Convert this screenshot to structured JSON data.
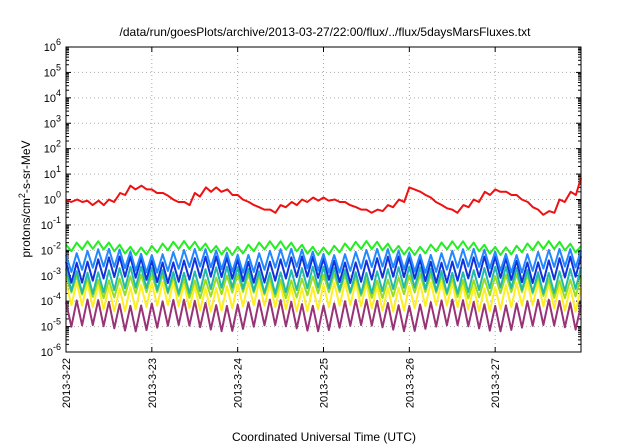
{
  "chart_data": {
    "type": "line",
    "title": "/data/run/goesPlots/archive/2013-03-27/22:00/flux/../flux/5daysMarsFluxes.txt",
    "xlabel": "Coordinated Universal Time (UTC)",
    "ylabel": "protons/cm2-s-sr-MeV",
    "yscale": "log",
    "ylim": [
      1e-06,
      1000000.0
    ],
    "xlim": [
      0,
      6
    ],
    "grid": true,
    "x_ticks": [
      {
        "label": "2013-3-22",
        "pos": 0
      },
      {
        "label": "2013-3-23",
        "pos": 1
      },
      {
        "label": "2013-3-24",
        "pos": 2
      },
      {
        "label": "2013-3-25",
        "pos": 3
      },
      {
        "label": "2013-3-26",
        "pos": 4
      },
      {
        "label": "2013-3-27",
        "pos": 5
      }
    ],
    "y_ticks": [
      {
        "base": "10",
        "exp": "-6",
        "value": 1e-06
      },
      {
        "base": "10",
        "exp": "-5",
        "value": 1e-05
      },
      {
        "base": "10",
        "exp": "-4",
        "value": 0.0001
      },
      {
        "base": "10",
        "exp": "-3",
        "value": 0.001
      },
      {
        "base": "10",
        "exp": "-2",
        "value": 0.01
      },
      {
        "base": "10",
        "exp": "-1",
        "value": 0.1
      },
      {
        "base": "10",
        "exp": "0",
        "value": 1
      },
      {
        "base": "10",
        "exp": "1",
        "value": 10
      },
      {
        "base": "10",
        "exp": "2",
        "value": 100
      },
      {
        "base": "10",
        "exp": "3",
        "value": 1000
      },
      {
        "base": "10",
        "exp": "4",
        "value": 10000
      },
      {
        "base": "10",
        "exp": "5",
        "value": 100000
      },
      {
        "base": "10",
        "exp": "6",
        "value": 1000000
      }
    ],
    "series": [
      {
        "color": "#ee1111",
        "x": [
          0.0,
          0.06,
          0.13,
          0.19,
          0.25,
          0.31,
          0.38,
          0.44,
          0.5,
          0.56,
          0.63,
          0.69,
          0.75,
          0.81,
          0.88,
          0.94,
          1.0,
          1.06,
          1.13,
          1.19,
          1.25,
          1.31,
          1.38,
          1.44,
          1.5,
          1.56,
          1.63,
          1.69,
          1.75,
          1.81,
          1.88,
          1.94,
          2.0,
          2.06,
          2.13,
          2.19,
          2.25,
          2.31,
          2.38,
          2.44,
          2.5,
          2.56,
          2.63,
          2.69,
          2.75,
          2.81,
          2.88,
          2.94,
          3.0,
          3.06,
          3.13,
          3.19,
          3.25,
          3.31,
          3.38,
          3.44,
          3.5,
          3.56,
          3.63,
          3.69,
          3.75,
          3.81,
          3.88,
          3.94,
          4.0,
          4.06,
          4.13,
          4.19,
          4.25,
          4.31,
          4.38,
          4.44,
          4.5,
          4.56,
          4.63,
          4.69,
          4.75,
          4.81,
          4.88,
          4.94,
          5.0,
          5.06,
          5.13,
          5.19,
          5.25,
          5.31,
          5.38,
          5.44,
          5.5,
          5.56,
          5.63,
          5.69,
          5.75,
          5.81,
          5.88,
          5.94,
          6.0
        ],
        "y": [
          1.0,
          0.8,
          1.0,
          0.8,
          0.9,
          0.6,
          0.9,
          0.6,
          1.0,
          0.8,
          1.8,
          1.5,
          3.5,
          2.5,
          3.5,
          2.5,
          2.5,
          1.8,
          1.8,
          1.4,
          1.0,
          0.8,
          0.8,
          0.6,
          1.8,
          1.3,
          3.0,
          2.0,
          3.0,
          2.0,
          2.5,
          1.5,
          1.5,
          1.0,
          0.8,
          0.6,
          0.5,
          0.4,
          0.4,
          0.3,
          0.6,
          0.5,
          0.8,
          0.6,
          1.0,
          0.8,
          1.2,
          0.9,
          1.2,
          0.9,
          1.0,
          0.8,
          0.8,
          0.6,
          0.5,
          0.4,
          0.4,
          0.3,
          0.4,
          0.35,
          0.6,
          0.5,
          1.0,
          0.8,
          3.0,
          2.5,
          2.0,
          1.5,
          1.2,
          0.8,
          0.6,
          0.45,
          0.4,
          0.3,
          0.6,
          0.5,
          1.0,
          0.8,
          2.0,
          1.5,
          2.5,
          2.0,
          2.0,
          1.5,
          1.5,
          1.0,
          0.8,
          0.5,
          0.4,
          0.25,
          0.35,
          0.3,
          1.0,
          0.8,
          2.0,
          1.5,
          7.0
        ]
      },
      {
        "color": "#22ee22",
        "pattern": "sawtooth",
        "peak": 0.02,
        "trough": 0.01
      },
      {
        "color": "#2288ff",
        "pattern": "sawtooth",
        "peak": 0.01,
        "trough": 0.002
      },
      {
        "color": "#1133dd",
        "pattern": "sawtooth",
        "peak": 0.005,
        "trough": 0.0008
      },
      {
        "color": "#22bbaa",
        "pattern": "sawtooth",
        "peak": 0.002,
        "trough": 0.0003
      },
      {
        "color": "#99dd22",
        "pattern": "sawtooth",
        "peak": 0.001,
        "trough": 0.0002
      },
      {
        "color": "#ffee22",
        "pattern": "sawtooth",
        "peak": 0.0005,
        "trough": 6e-05
      },
      {
        "color": "#993377",
        "pattern": "sawtooth",
        "peak": 0.0001,
        "trough": 1e-05
      }
    ]
  }
}
